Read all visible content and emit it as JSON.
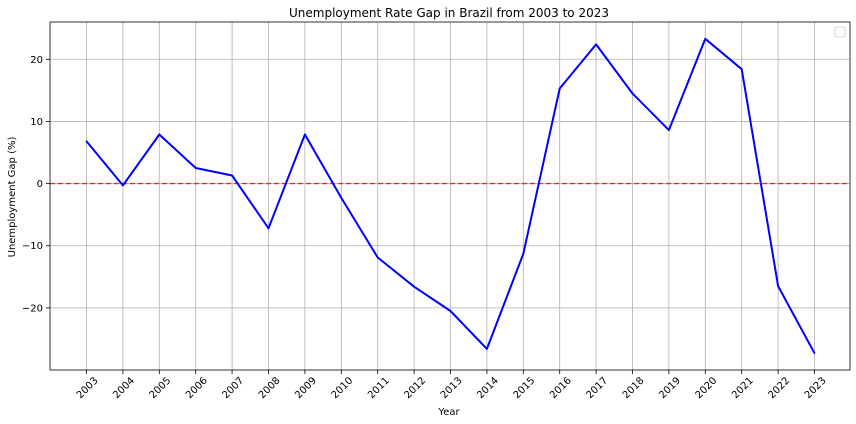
{
  "chart_data": {
    "type": "line",
    "title": "Unemployment Rate Gap in Brazil from 2003 to 2023",
    "xlabel": "Year",
    "ylabel": "Unemployment Gap (%)",
    "categories": [
      "2003",
      "2004",
      "2005",
      "2006",
      "2007",
      "2008",
      "2009",
      "2010",
      "2011",
      "2012",
      "2013",
      "2014",
      "2015",
      "2016",
      "2017",
      "2018",
      "2019",
      "2020",
      "2021",
      "2022",
      "2023"
    ],
    "series": [
      {
        "values": [
          6.8,
          -0.3,
          7.9,
          2.5,
          1.3,
          -7.2,
          7.9,
          -2.3,
          -11.9,
          -16.6,
          -20.5,
          -26.6,
          -11.3,
          15.3,
          22.4,
          14.5,
          8.6,
          23.3,
          18.4,
          -16.5,
          -27.3
        ],
        "color": "#0000ff"
      }
    ],
    "reference_line": {
      "y": 0,
      "color": "#ff0000",
      "style": "dashed"
    },
    "ylim": [
      -30,
      26
    ],
    "yticks": [
      -20,
      -10,
      0,
      10,
      20
    ],
    "ytick_labels": [
      "−20",
      "−10",
      "0",
      "10",
      "20"
    ],
    "grid": true,
    "legend": "top-right (empty)"
  }
}
